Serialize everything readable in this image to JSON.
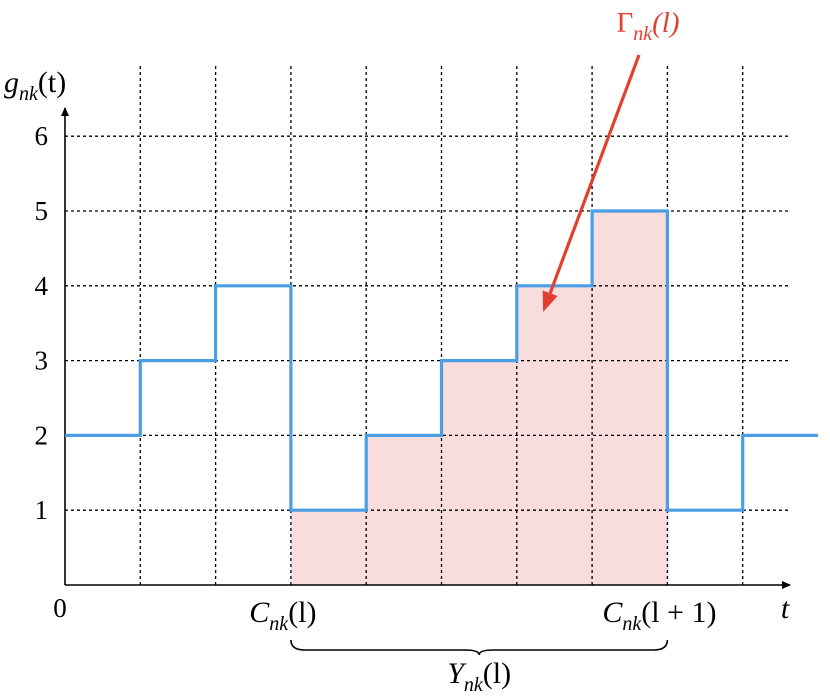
{
  "chart_data": {
    "type": "line",
    "subtype": "step",
    "title": "",
    "xlabel": "t",
    "ylabel": {
      "main": "g",
      "sub": "nk",
      "suffix": "(t)"
    },
    "origin_label": "0",
    "yticks": [
      1,
      2,
      3,
      4,
      5,
      6
    ],
    "ylim": [
      0,
      6.6
    ],
    "xlim": [
      0,
      9.6
    ],
    "x_grid": [
      1,
      2,
      3,
      4,
      5,
      6,
      7,
      8,
      9
    ],
    "grid": true,
    "grid_style": "dotted",
    "series": [
      {
        "color": "#4a9ee6",
        "steps": [
          {
            "x0": 0,
            "x1": 1,
            "y": 2
          },
          {
            "x0": 1,
            "x1": 2,
            "y": 3
          },
          {
            "x0": 2,
            "x1": 3,
            "y": 4
          },
          {
            "x0": 3,
            "x1": 4,
            "y": 1
          },
          {
            "x0": 4,
            "x1": 5,
            "y": 2
          },
          {
            "x0": 5,
            "x1": 6,
            "y": 3
          },
          {
            "x0": 6,
            "x1": 7,
            "y": 4
          },
          {
            "x0": 7,
            "x1": 8,
            "y": 5
          },
          {
            "x0": 8,
            "x1": 9,
            "y": 1
          },
          {
            "x0": 9,
            "x1": 10,
            "y": 2
          }
        ]
      }
    ],
    "shaded_region": {
      "x0": 3,
      "x1": 8,
      "color": "#f9dcdc"
    },
    "x_markers": [
      {
        "x": 3,
        "main": "C",
        "sub": "nk",
        "suffix": "(l)"
      },
      {
        "x": 8,
        "main": "C",
        "sub": "nk",
        "suffix": "(l + 1)"
      }
    ],
    "brace": {
      "x0": 3,
      "x1": 8,
      "main": "Y",
      "sub": "nk",
      "suffix": "(l)"
    },
    "annotation": {
      "main": "Γ",
      "sub": "nk",
      "suffix": "(l)",
      "color": "#e0412f",
      "arrow_to": {
        "x": 6.35,
        "y": 3.65
      }
    }
  }
}
